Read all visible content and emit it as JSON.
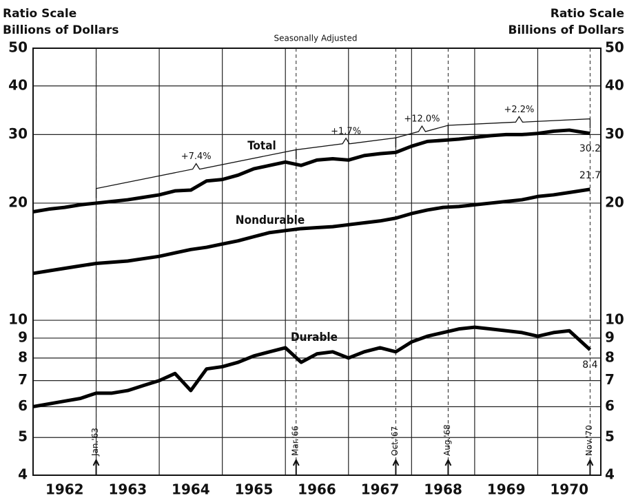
{
  "chart_data": {
    "type": "line",
    "title_left": [
      "Ratio Scale",
      "Billions of Dollars"
    ],
    "title_right": [
      "Ratio Scale",
      "Billions of Dollars"
    ],
    "subtitle": "Seasonally Adjusted",
    "log_scale": true,
    "grid": true,
    "xlim": [
      1962,
      1971
    ],
    "xticks": [
      1962,
      1963,
      1964,
      1965,
      1966,
      1967,
      1968,
      1969,
      1970,
      1971
    ],
    "year_labels": [
      {
        "value": 1962.5,
        "label": "1962"
      },
      {
        "value": 1963.5,
        "label": "1963"
      },
      {
        "value": 1964.5,
        "label": "1964"
      },
      {
        "value": 1965.5,
        "label": "1965"
      },
      {
        "value": 1966.5,
        "label": "1966"
      },
      {
        "value": 1967.5,
        "label": "1967"
      },
      {
        "value": 1968.5,
        "label": "1968"
      },
      {
        "value": 1969.5,
        "label": "1969"
      },
      {
        "value": 1970.5,
        "label": "1970"
      }
    ],
    "ylim": [
      4,
      50
    ],
    "yticks": [
      4,
      5,
      6,
      7,
      8,
      9,
      10,
      20,
      30,
      40,
      50
    ],
    "x": [
      1962,
      1962.25,
      1962.5,
      1962.75,
      1963,
      1963.25,
      1963.5,
      1963.75,
      1964,
      1964.25,
      1964.5,
      1964.75,
      1965,
      1965.25,
      1965.5,
      1965.75,
      1966,
      1966.25,
      1966.5,
      1966.75,
      1967,
      1967.25,
      1967.5,
      1967.75,
      1968,
      1968.25,
      1968.5,
      1968.75,
      1969,
      1969.25,
      1969.5,
      1969.75,
      1970,
      1970.25,
      1970.5,
      1970.83
    ],
    "series": [
      {
        "name": "Total",
        "color": "#000000",
        "values": [
          19.0,
          19.3,
          19.5,
          19.8,
          20.0,
          20.2,
          20.4,
          20.7,
          21.0,
          21.5,
          21.6,
          22.8,
          23.0,
          23.6,
          24.5,
          25.0,
          25.5,
          25.0,
          25.8,
          26.0,
          25.8,
          26.5,
          26.8,
          27.0,
          28.0,
          28.8,
          29.0,
          29.2,
          29.5,
          29.8,
          30.0,
          30.0,
          30.2,
          30.6,
          30.8,
          30.2
        ]
      },
      {
        "name": "Nondurable",
        "color": "#000000",
        "values": [
          13.2,
          13.4,
          13.6,
          13.8,
          14.0,
          14.1,
          14.2,
          14.4,
          14.6,
          14.9,
          15.2,
          15.4,
          15.7,
          16.0,
          16.4,
          16.8,
          17.0,
          17.2,
          17.3,
          17.4,
          17.6,
          17.8,
          18.0,
          18.3,
          18.8,
          19.2,
          19.5,
          19.6,
          19.8,
          20.0,
          20.2,
          20.4,
          20.8,
          21.0,
          21.3,
          21.7
        ]
      },
      {
        "name": "Durable",
        "color": "#000000",
        "values": [
          6.0,
          6.1,
          6.2,
          6.3,
          6.5,
          6.5,
          6.6,
          6.8,
          7.0,
          7.3,
          6.6,
          7.5,
          7.6,
          7.8,
          8.1,
          8.3,
          8.5,
          7.8,
          8.2,
          8.3,
          8.0,
          8.3,
          8.5,
          8.3,
          8.8,
          9.1,
          9.3,
          9.5,
          9.6,
          9.5,
          9.4,
          9.3,
          9.1,
          9.3,
          9.4,
          8.4
        ]
      }
    ],
    "date_markers": [
      {
        "x": 1963.0,
        "label": "Jan.'63"
      },
      {
        "x": 1966.17,
        "label": "Mar.'66"
      },
      {
        "x": 1967.75,
        "label": "Oct.'67"
      },
      {
        "x": 1968.58,
        "label": "Aug.'68"
      },
      {
        "x": 1970.83,
        "label": "Nov.'70"
      }
    ],
    "changes": [
      {
        "label": "+7.4%"
      },
      {
        "label": "+1.7%"
      },
      {
        "label": "+12.0%"
      },
      {
        "label": "+2.2%"
      }
    ]
  }
}
